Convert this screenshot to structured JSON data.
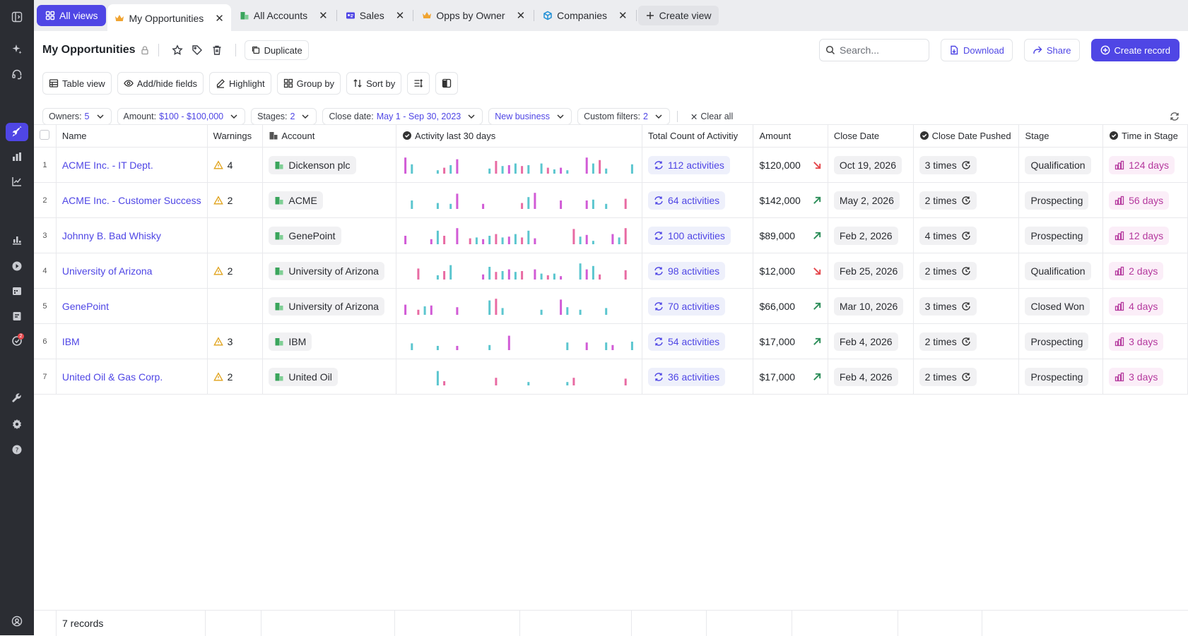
{
  "colors": {
    "accent": "#4f46e5",
    "teal": "#5cc6cf",
    "magenta": "#d15bd6",
    "pink": "#e86ba3",
    "up": "#2f8f5b",
    "down": "#e5484d",
    "time_pink": "#b5399e"
  },
  "sidebar": {
    "icons": [
      "sidebar-toggle-icon",
      "sparkle-icon",
      "headset-icon",
      "rocket-icon",
      "bar-chart-icon",
      "trend-chart-icon",
      "analytics-icon",
      "play-icon",
      "calendar-icon",
      "notes-icon",
      "check-badge-icon",
      "wrench-icon",
      "gear-icon",
      "help-icon",
      "user-icon"
    ],
    "badge": "2"
  },
  "tabs": {
    "all_views": "All views",
    "items": [
      {
        "label": "My Opportunities",
        "icon": "crown-icon"
      },
      {
        "label": "All Accounts",
        "icon": "building-icon"
      },
      {
        "label": "Sales",
        "icon": "id-card-icon"
      },
      {
        "label": "Opps by Owner",
        "icon": "crown-icon"
      },
      {
        "label": "Companies",
        "icon": "cube-icon"
      }
    ],
    "create": "Create view"
  },
  "header": {
    "title": "My Opportunities",
    "duplicate": "Duplicate",
    "search_placeholder": "Search...",
    "download": "Download",
    "share": "Share",
    "create_record": "Create record"
  },
  "toolbar": {
    "table_view": "Table view",
    "add_hide": "Add/hide fields",
    "highlight": "Highlight",
    "group_by": "Group by",
    "sort_by": "Sort by"
  },
  "filters": {
    "owners_label": "Owners:",
    "owners_value": "5",
    "amount_label": "Amount:",
    "amount_value": "$100 - $100,000",
    "stages_label": "Stages:",
    "stages_value": "2",
    "close_label": "Close date:",
    "close_value": "May 1 - Sep 30, 2023",
    "new_business": "New business",
    "custom_label": "Custom filters:",
    "custom_value": "2",
    "clear_all": "Clear all"
  },
  "table": {
    "columns": [
      "Name",
      "Warnings",
      "Account",
      "Activity last 30 days",
      "Total Count of Activitiy",
      "Amount",
      "Close Date",
      "Close Date Pushed",
      "Stage",
      "Time in Stage"
    ],
    "rows": [
      {
        "num": "1",
        "name": "ACME Inc. - IT Dept.",
        "warnings": "4",
        "account": "Dickenson plc",
        "activities": "112 activities",
        "amount": "$120,000",
        "trend": "down",
        "close": "Oct 19, 2026",
        "pushed": "3 times",
        "stage": "Qualification",
        "time": "124 days",
        "spark": [
          0.95,
          0.55,
          0,
          0,
          0,
          0.2,
          0.35,
          0.5,
          0.85,
          0,
          0,
          0,
          0,
          0.3,
          0.75,
          0.45,
          0.5,
          0.6,
          0.45,
          0.5,
          0,
          0.6,
          0.35,
          0.25,
          0.35,
          0.2,
          0,
          0,
          0.95,
          0.6,
          0.8,
          0.3,
          0,
          0,
          0,
          0.55
        ]
      },
      {
        "num": "2",
        "name": "ACME Inc. - Customer Success",
        "warnings": "2",
        "account": "ACME",
        "activities": "64 activities",
        "amount": "$142,000",
        "trend": "up",
        "close": "May 2, 2026",
        "pushed": "2 times",
        "stage": "Prospecting",
        "time": "56 days",
        "spark": [
          0,
          0.5,
          0,
          0,
          0,
          0.35,
          0,
          0.3,
          0.9,
          0,
          0,
          0,
          0.3,
          0,
          0,
          0,
          0,
          0,
          0.35,
          0.7,
          0.95,
          0,
          0,
          0,
          0.5,
          0,
          0,
          0,
          0.5,
          0.55,
          0,
          0.3,
          0,
          0,
          0.6,
          0
        ]
      },
      {
        "num": "3",
        "name": "Johnny B. Bad Whisky",
        "warnings": "",
        "account": "GenePoint",
        "activities": "100 activities",
        "amount": "$89,000",
        "trend": "up",
        "close": "Feb 2, 2026",
        "pushed": "4 times",
        "stage": "Prospecting",
        "time": "12 days",
        "spark": [
          0.5,
          0,
          0,
          0,
          0.3,
          0.8,
          0.5,
          0,
          0.95,
          0,
          0.35,
          0.4,
          0.3,
          0.5,
          0.6,
          0.4,
          0.45,
          0.6,
          0.4,
          0.8,
          0.35,
          0,
          0,
          0,
          0,
          0,
          0.9,
          0.45,
          0.55,
          0.2,
          0,
          0,
          0.6,
          0.4,
          0.95,
          0
        ]
      },
      {
        "num": "4",
        "name": "University of Arizona",
        "warnings": "2",
        "account": "University of Arizona",
        "activities": "98 activities",
        "amount": "$12,000",
        "trend": "down",
        "close": "Feb 25, 2026",
        "pushed": "2 times",
        "stage": "Qualification",
        "time": "2 days",
        "spark": [
          0,
          0,
          0.65,
          0,
          0,
          0.25,
          0.5,
          0.85,
          0,
          0,
          0,
          0,
          0.3,
          0.75,
          0.45,
          0.5,
          0.6,
          0.45,
          0.5,
          0,
          0.6,
          0.35,
          0.25,
          0.35,
          0.2,
          0,
          0,
          0.95,
          0.6,
          0.8,
          0.3,
          0,
          0,
          0,
          0.55,
          0
        ]
      },
      {
        "num": "5",
        "name": "GenePoint",
        "warnings": "",
        "account": "University of Arizona",
        "activities": "70 activities",
        "amount": "$66,000",
        "trend": "up",
        "close": "Mar 10, 2026",
        "pushed": "3 times",
        "stage": "Closed Won",
        "time": "4 days",
        "spark": [
          0.6,
          0,
          0.3,
          0.5,
          0.55,
          0,
          0,
          0,
          0.45,
          0,
          0,
          0,
          0,
          0.85,
          0.95,
          0.4,
          0,
          0,
          0,
          0,
          0,
          0.3,
          0,
          0,
          0.9,
          0.45,
          0,
          0.3,
          0,
          0,
          0,
          0.4,
          0,
          0,
          0,
          0
        ]
      },
      {
        "num": "6",
        "name": "IBM",
        "warnings": "3",
        "account": "IBM",
        "activities": "54 activities",
        "amount": "$17,000",
        "trend": "up",
        "close": "Feb 4, 2026",
        "pushed": "2 times",
        "stage": "Prospecting",
        "time": "3 days",
        "spark": [
          0,
          0.4,
          0,
          0,
          0,
          0.25,
          0,
          0,
          0.25,
          0,
          0,
          0,
          0,
          0.3,
          0,
          0,
          0.85,
          0,
          0,
          0,
          0,
          0,
          0,
          0,
          0,
          0.45,
          0,
          0,
          0.45,
          0,
          0,
          0.45,
          0.3,
          0,
          0,
          0.5
        ]
      },
      {
        "num": "7",
        "name": "United Oil & Gas Corp.",
        "warnings": "2",
        "account": "United Oil",
        "activities": "36 activities",
        "amount": "$17,000",
        "trend": "up",
        "close": "Feb 4, 2026",
        "pushed": "2 times",
        "stage": "Prospecting",
        "time": "3 days",
        "spark": [
          0,
          0,
          0,
          0,
          0,
          0.85,
          0.25,
          0,
          0,
          0,
          0,
          0,
          0,
          0,
          0.45,
          0,
          0,
          0,
          0,
          0.2,
          0,
          0,
          0,
          0,
          0,
          0.2,
          0.45,
          0,
          0,
          0,
          0,
          0,
          0,
          0,
          0.4,
          0
        ]
      }
    ]
  },
  "footer": {
    "records": "7 records"
  }
}
